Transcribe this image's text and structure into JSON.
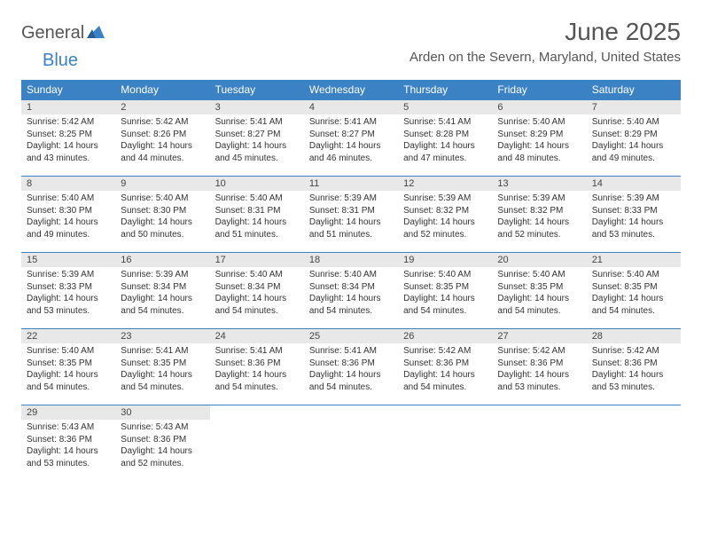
{
  "logo": {
    "text1": "General",
    "text2": "Blue"
  },
  "header": {
    "month_title": "June 2025",
    "location": "Arden on the Severn, Maryland, United States"
  },
  "colors": {
    "header_bg": "#3b82c4",
    "header_text": "#ffffff",
    "daynum_bg": "#e8e8e8",
    "border": "#3b82c4",
    "title_color": "#555555",
    "logo_blue": "#3b82c4",
    "logo_gray": "#555555"
  },
  "calendar": {
    "type": "table",
    "columns": [
      "Sunday",
      "Monday",
      "Tuesday",
      "Wednesday",
      "Thursday",
      "Friday",
      "Saturday"
    ],
    "weeks": [
      [
        {
          "d": "1",
          "sr": "5:42 AM",
          "ss": "8:25 PM",
          "dl": "14 hours and 43 minutes."
        },
        {
          "d": "2",
          "sr": "5:42 AM",
          "ss": "8:26 PM",
          "dl": "14 hours and 44 minutes."
        },
        {
          "d": "3",
          "sr": "5:41 AM",
          "ss": "8:27 PM",
          "dl": "14 hours and 45 minutes."
        },
        {
          "d": "4",
          "sr": "5:41 AM",
          "ss": "8:27 PM",
          "dl": "14 hours and 46 minutes."
        },
        {
          "d": "5",
          "sr": "5:41 AM",
          "ss": "8:28 PM",
          "dl": "14 hours and 47 minutes."
        },
        {
          "d": "6",
          "sr": "5:40 AM",
          "ss": "8:29 PM",
          "dl": "14 hours and 48 minutes."
        },
        {
          "d": "7",
          "sr": "5:40 AM",
          "ss": "8:29 PM",
          "dl": "14 hours and 49 minutes."
        }
      ],
      [
        {
          "d": "8",
          "sr": "5:40 AM",
          "ss": "8:30 PM",
          "dl": "14 hours and 49 minutes."
        },
        {
          "d": "9",
          "sr": "5:40 AM",
          "ss": "8:30 PM",
          "dl": "14 hours and 50 minutes."
        },
        {
          "d": "10",
          "sr": "5:40 AM",
          "ss": "8:31 PM",
          "dl": "14 hours and 51 minutes."
        },
        {
          "d": "11",
          "sr": "5:39 AM",
          "ss": "8:31 PM",
          "dl": "14 hours and 51 minutes."
        },
        {
          "d": "12",
          "sr": "5:39 AM",
          "ss": "8:32 PM",
          "dl": "14 hours and 52 minutes."
        },
        {
          "d": "13",
          "sr": "5:39 AM",
          "ss": "8:32 PM",
          "dl": "14 hours and 52 minutes."
        },
        {
          "d": "14",
          "sr": "5:39 AM",
          "ss": "8:33 PM",
          "dl": "14 hours and 53 minutes."
        }
      ],
      [
        {
          "d": "15",
          "sr": "5:39 AM",
          "ss": "8:33 PM",
          "dl": "14 hours and 53 minutes."
        },
        {
          "d": "16",
          "sr": "5:39 AM",
          "ss": "8:34 PM",
          "dl": "14 hours and 54 minutes."
        },
        {
          "d": "17",
          "sr": "5:40 AM",
          "ss": "8:34 PM",
          "dl": "14 hours and 54 minutes."
        },
        {
          "d": "18",
          "sr": "5:40 AM",
          "ss": "8:34 PM",
          "dl": "14 hours and 54 minutes."
        },
        {
          "d": "19",
          "sr": "5:40 AM",
          "ss": "8:35 PM",
          "dl": "14 hours and 54 minutes."
        },
        {
          "d": "20",
          "sr": "5:40 AM",
          "ss": "8:35 PM",
          "dl": "14 hours and 54 minutes."
        },
        {
          "d": "21",
          "sr": "5:40 AM",
          "ss": "8:35 PM",
          "dl": "14 hours and 54 minutes."
        }
      ],
      [
        {
          "d": "22",
          "sr": "5:40 AM",
          "ss": "8:35 PM",
          "dl": "14 hours and 54 minutes."
        },
        {
          "d": "23",
          "sr": "5:41 AM",
          "ss": "8:35 PM",
          "dl": "14 hours and 54 minutes."
        },
        {
          "d": "24",
          "sr": "5:41 AM",
          "ss": "8:36 PM",
          "dl": "14 hours and 54 minutes."
        },
        {
          "d": "25",
          "sr": "5:41 AM",
          "ss": "8:36 PM",
          "dl": "14 hours and 54 minutes."
        },
        {
          "d": "26",
          "sr": "5:42 AM",
          "ss": "8:36 PM",
          "dl": "14 hours and 54 minutes."
        },
        {
          "d": "27",
          "sr": "5:42 AM",
          "ss": "8:36 PM",
          "dl": "14 hours and 53 minutes."
        },
        {
          "d": "28",
          "sr": "5:42 AM",
          "ss": "8:36 PM",
          "dl": "14 hours and 53 minutes."
        }
      ],
      [
        {
          "d": "29",
          "sr": "5:43 AM",
          "ss": "8:36 PM",
          "dl": "14 hours and 53 minutes."
        },
        {
          "d": "30",
          "sr": "5:43 AM",
          "ss": "8:36 PM",
          "dl": "14 hours and 52 minutes."
        },
        null,
        null,
        null,
        null,
        null
      ]
    ]
  },
  "labels": {
    "sunrise": "Sunrise:",
    "sunset": "Sunset:",
    "daylight": "Daylight:"
  }
}
